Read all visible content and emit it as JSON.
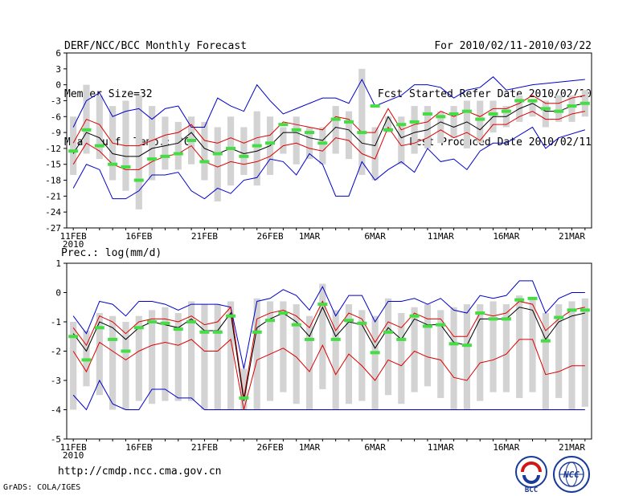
{
  "header": {
    "title": "DERF/NCC/BCC Monthly Forecast",
    "member_size": "Member Size=32",
    "variable": "Mean Surf. Temp.: °C",
    "period": "For 2010/02/11-2010/03/22",
    "started": "Fcst Started Refer Date 2010/02/10",
    "produced": "Fcst Produced Date 2010/02/11"
  },
  "footer": {
    "url": "http://cmdp.ncc.cma.gov.cn",
    "credit": "GrADS: COLA/IGES",
    "logo_bcc": "BCC",
    "logo_ncc": "NCC"
  },
  "colors": {
    "box": "#d3d3d3",
    "median": "#44dd44",
    "mean": "#000000",
    "sd": "#dd0000",
    "extreme": "#0000cc"
  },
  "chart_data": [
    {
      "type": "line",
      "id": "temp",
      "title": "Mean Surf. Temp.: °C",
      "ylim": [
        -27,
        6
      ],
      "yticks": [
        6,
        3,
        0,
        -3,
        -6,
        -9,
        -12,
        -15,
        -18,
        -21,
        -24,
        -27
      ],
      "xlim": [
        0.5,
        40.5
      ],
      "xticks": [
        {
          "day": 1,
          "label": "11FEB"
        },
        {
          "day": 6,
          "label": "16FEB"
        },
        {
          "day": 11,
          "label": "21FEB"
        },
        {
          "day": 16,
          "label": "26FEB"
        },
        {
          "day": 19,
          "label": "1MAR"
        },
        {
          "day": 24,
          "label": "6MAR"
        },
        {
          "day": 29,
          "label": "11MAR"
        },
        {
          "day": 34,
          "label": "16MAR"
        },
        {
          "day": 39,
          "label": "21MAR"
        }
      ],
      "xsublabel": "2010",
      "days": [
        1,
        2,
        3,
        4,
        5,
        6,
        7,
        8,
        9,
        10,
        11,
        12,
        13,
        14,
        15,
        16,
        17,
        18,
        19,
        20,
        21,
        22,
        23,
        24,
        25,
        26,
        27,
        28,
        29,
        30,
        31,
        32,
        33,
        34,
        35,
        36,
        37,
        38,
        39,
        40
      ],
      "mean": [
        -13,
        -9,
        -10,
        -13,
        -13.5,
        -13.5,
        -12,
        -11.5,
        -11,
        -9,
        -12,
        -13,
        -12,
        -13,
        -12.5,
        -11.5,
        -9,
        -9,
        -10,
        -10.5,
        -8,
        -8.5,
        -11,
        -11.5,
        -6,
        -10,
        -9,
        -8.5,
        -7,
        -8,
        -7,
        -8.5,
        -6,
        -6,
        -4.5,
        -3.5,
        -5,
        -5,
        -4,
        -3.5
      ],
      "upper": [
        -11,
        -6.5,
        -7.5,
        -11,
        -11.5,
        -11.5,
        -10.5,
        -9.5,
        -9,
        -7.5,
        -10.5,
        -11,
        -10,
        -11,
        -10,
        -9.5,
        -7,
        -7.5,
        -8,
        -8.5,
        -6,
        -6.5,
        -9,
        -9,
        -4.5,
        -8.5,
        -7.5,
        -7,
        -5,
        -6,
        -5,
        -6,
        -4.5,
        -4.5,
        -3.5,
        -2,
        -3.5,
        -3.5,
        -2.5,
        -2
      ],
      "lower": [
        -15,
        -11,
        -12.5,
        -15,
        -16,
        -16,
        -14.5,
        -13.5,
        -13,
        -11.5,
        -14.5,
        -15.5,
        -14.5,
        -15,
        -14.5,
        -13.5,
        -11.5,
        -11,
        -12,
        -12.5,
        -10,
        -10.5,
        -13,
        -14,
        -8,
        -11.5,
        -11,
        -10,
        -8.5,
        -10,
        -9,
        -10.5,
        -7.5,
        -7.5,
        -6,
        -5,
        -6.5,
        -6.5,
        -5.5,
        -5
      ],
      "max": [
        -8,
        -3,
        -1.5,
        -6,
        -5,
        -4.5,
        -6.5,
        -4.5,
        -4,
        -8,
        -8,
        -2.5,
        -4,
        -5,
        0,
        -3,
        -5.5,
        -4.5,
        -3.5,
        -2.5,
        -2.5,
        -3.5,
        1,
        -4,
        -3,
        -2,
        0,
        0,
        -0.5,
        -2.5,
        -1,
        -0.5,
        1.5,
        -1,
        0,
        1
      ],
      "min": [
        -19.5,
        -15,
        -16,
        -21.5,
        -21.5,
        -20,
        -17,
        -17,
        -16.5,
        -20,
        -21.5,
        -19.5,
        -20.5,
        -18,
        -17.5,
        -14,
        -14.5,
        -17,
        -13,
        -15,
        -21,
        -21,
        -14.5,
        -18,
        -16,
        -14.5,
        -16.5,
        -12,
        -14.5,
        -14,
        -16,
        -12.5,
        -11,
        -11,
        -8,
        -12,
        -10,
        -8.5
      ],
      "max_days": [
        1,
        2,
        3,
        4,
        5,
        6,
        7,
        8,
        9,
        10,
        11,
        12,
        13,
        14,
        15,
        16,
        17,
        18,
        19,
        20,
        21,
        22,
        23,
        24,
        25,
        26,
        27,
        28,
        29,
        30,
        31,
        32,
        33,
        34,
        36,
        40
      ],
      "min_days": [
        1,
        2,
        3,
        4,
        5,
        6,
        7,
        8,
        9,
        10,
        11,
        12,
        13,
        14,
        15,
        16,
        17,
        18,
        19,
        20,
        21,
        22,
        23,
        24,
        25,
        26,
        27,
        28,
        29,
        30,
        31,
        32,
        33,
        34,
        36,
        37,
        38,
        40
      ],
      "box_top": [
        -6,
        0,
        -2,
        -4,
        -3,
        -2,
        -4,
        -6,
        -7,
        -6,
        -7,
        -8,
        -6,
        -8,
        -5,
        -6,
        -8,
        -6,
        -8,
        -8,
        -4,
        -5,
        3,
        -8,
        -6,
        -6,
        -4,
        -4,
        -5,
        -4,
        -3,
        -3,
        -3,
        -4,
        -2,
        -3,
        -3,
        -2,
        -2,
        -1
      ],
      "box_bottom": [
        -17,
        -13,
        -14,
        -18,
        -20,
        -23.5,
        -18,
        -16,
        -16,
        -15,
        -18,
        -22,
        -19,
        -17,
        -19,
        -17,
        -13,
        -15,
        -14,
        -15,
        -13,
        -14,
        -17,
        -18,
        -9,
        -15,
        -13,
        -12,
        -11,
        -10,
        -12,
        -11,
        -9,
        -8,
        -7,
        -6,
        -8,
        -7,
        -7,
        -6
      ],
      "median": [
        -12.5,
        -8.5,
        -11.5,
        -15,
        -15.5,
        -18,
        -14,
        -13.5,
        -13,
        -10.5,
        -14.5,
        -13,
        -12,
        -13.5,
        -11.5,
        -11,
        -7.5,
        -8.5,
        -9,
        -11,
        -6.5,
        -7,
        -9,
        -4,
        -8.5,
        -7.5,
        -7,
        -5.5,
        -6,
        -5.5,
        -5,
        -6.5,
        -5.5,
        -5,
        -3,
        -3,
        -4.5,
        -5,
        -4,
        -3.5
      ]
    },
    {
      "type": "line",
      "id": "precip",
      "title": "Prec.: log(mm/d)",
      "ylim": [
        -5,
        1
      ],
      "yticks": [
        1,
        0,
        -1,
        -2,
        -3,
        -4,
        -5
      ],
      "xlim": [
        0.5,
        40.5
      ],
      "xticks": [
        {
          "day": 1,
          "label": "11FEB"
        },
        {
          "day": 6,
          "label": "16FEB"
        },
        {
          "day": 11,
          "label": "21FEB"
        },
        {
          "day": 16,
          "label": "26FEB"
        },
        {
          "day": 19,
          "label": "1MAR"
        },
        {
          "day": 24,
          "label": "6MAR"
        },
        {
          "day": 29,
          "label": "11MAR"
        },
        {
          "day": 34,
          "label": "16MAR"
        },
        {
          "day": 39,
          "label": "21MAR"
        }
      ],
      "xsublabel": "2010",
      "days": [
        1,
        2,
        3,
        4,
        5,
        6,
        7,
        8,
        9,
        10,
        11,
        12,
        13,
        14,
        15,
        16,
        17,
        18,
        19,
        20,
        21,
        22,
        23,
        24,
        25,
        26,
        27,
        28,
        29,
        30,
        31,
        32,
        33,
        34,
        35,
        36,
        37,
        38,
        39,
        40
      ],
      "mean": [
        -1.4,
        -2.0,
        -1.0,
        -1.2,
        -1.6,
        -1.2,
        -1.0,
        -1.1,
        -1.2,
        -0.9,
        -1.3,
        -1.3,
        -0.7,
        -3.7,
        -1.2,
        -0.9,
        -0.7,
        -1.0,
        -1.5,
        -0.5,
        -1.5,
        -1.0,
        -1.1,
        -1.9,
        -1.2,
        -1.6,
        -0.9,
        -1.1,
        -1.1,
        -1.7,
        -1.8,
        -0.9,
        -0.9,
        -0.9,
        -0.5,
        -0.6,
        -1.6,
        -1.0,
        -0.8,
        -0.7
      ],
      "upper": [
        -1.2,
        -1.8,
        -0.8,
        -1.0,
        -1.4,
        -1.0,
        -0.9,
        -0.9,
        -1.0,
        -0.8,
        -1.1,
        -1.0,
        -0.5,
        -3.6,
        -0.9,
        -0.7,
        -0.6,
        -0.8,
        -1.2,
        -0.3,
        -1.3,
        -0.7,
        -0.9,
        -1.7,
        -1.0,
        -1.2,
        -0.7,
        -0.9,
        -0.9,
        -1.5,
        -1.5,
        -0.7,
        -0.8,
        -0.7,
        -0.3,
        -0.4,
        -1.3,
        -0.9,
        -0.6,
        -0.5
      ],
      "lower": [
        -2.0,
        -2.7,
        -1.7,
        -2.0,
        -2.3,
        -2.0,
        -1.8,
        -1.7,
        -1.8,
        -1.6,
        -2.0,
        -2.0,
        -1.6,
        -4.0,
        -2.3,
        -2.1,
        -1.9,
        -2.2,
        -2.7,
        -1.8,
        -2.8,
        -2.1,
        -2.5,
        -3.0,
        -2.3,
        -2.5,
        -2.0,
        -2.2,
        -2.3,
        -2.9,
        -3.0,
        -2.4,
        -2.3,
        -2.1,
        -1.6,
        -1.6,
        -2.8,
        -2.7,
        -2.5,
        -2.5
      ],
      "max": [
        -0.8,
        -1.4,
        -0.3,
        -0.4,
        -0.8,
        -0.3,
        -0.3,
        -0.4,
        -0.6,
        -0.4,
        -0.4,
        -0.4,
        -0.5,
        -2.6,
        -0.3,
        -0.2,
        0.1,
        -0.1,
        -0.6,
        0.2,
        -0.8,
        -0.1,
        -0.1,
        -1.0,
        -0.3,
        -0.3,
        -0.2,
        -0.4,
        -0.2,
        -0.6,
        -0.7,
        -0.1,
        -0.2,
        -0.1,
        0.4,
        0.4,
        -0.7,
        -0.2,
        0.0,
        0.0
      ],
      "min": [
        -3.5,
        -4.0,
        -3.0,
        -3.8,
        -4.0,
        -4.0,
        -3.3,
        -3.3,
        -3.6,
        -3.6,
        -4.0,
        -4.0,
        -4.0,
        -4.0,
        -4.0,
        -4.0,
        -4.0,
        -4.0,
        -4.0,
        -4.0,
        -4.0,
        -4.0,
        -4.0,
        -4.0,
        -4.0,
        -4.0,
        -4.0,
        -4.0,
        -4.0,
        -4.0,
        -4.0,
        -4.0,
        -4.0,
        -4.0,
        -4.0,
        -4.0,
        -4.0,
        -4.0,
        -4.0,
        -4.0
      ],
      "box_top": [
        -1.0,
        -1.3,
        -0.7,
        -0.8,
        -1.0,
        -0.8,
        -0.6,
        -0.5,
        -0.7,
        -0.3,
        -0.4,
        -0.4,
        -0.3,
        -2.6,
        -0.2,
        -0.3,
        -0.3,
        -0.4,
        -0.8,
        0.3,
        -0.6,
        -0.4,
        -0.6,
        -0.8,
        -0.2,
        -0.7,
        -0.5,
        -0.4,
        -0.6,
        -0.5,
        -0.4,
        -0.4,
        -0.3,
        -0.4,
        -0.1,
        -0.2,
        -0.7,
        -0.4,
        -0.3,
        -0.2
      ],
      "box_bottom": [
        -4.0,
        -3.2,
        -3.5,
        -4.0,
        -4.0,
        -3.7,
        -3.8,
        -3.7,
        -3.7,
        -3.7,
        -4.0,
        -4.0,
        -4.0,
        -4.0,
        -4.0,
        -3.7,
        -3.4,
        -3.8,
        -4.0,
        -3.3,
        -4.0,
        -3.8,
        -3.7,
        -4.0,
        -3.5,
        -3.8,
        -3.4,
        -3.2,
        -3.6,
        -4.0,
        -4.0,
        -3.7,
        -3.4,
        -3.4,
        -3.6,
        -3.4,
        -4.0,
        -3.6,
        -4.0,
        -3.9
      ],
      "median": [
        -1.5,
        -2.3,
        -1.2,
        -1.6,
        -2.0,
        -1.2,
        -1.0,
        -1.05,
        -1.25,
        -1.0,
        -1.35,
        -1.35,
        -0.8,
        -3.6,
        -1.35,
        -0.95,
        -0.7,
        -1.1,
        -1.6,
        -0.4,
        -1.6,
        -0.95,
        -1.05,
        -2.05,
        -1.35,
        -1.6,
        -0.8,
        -1.15,
        -1.1,
        -1.75,
        -1.8,
        -0.7,
        -0.9,
        -0.9,
        -0.25,
        -0.2,
        -1.65,
        -0.85,
        -0.6,
        -0.6
      ]
    }
  ]
}
